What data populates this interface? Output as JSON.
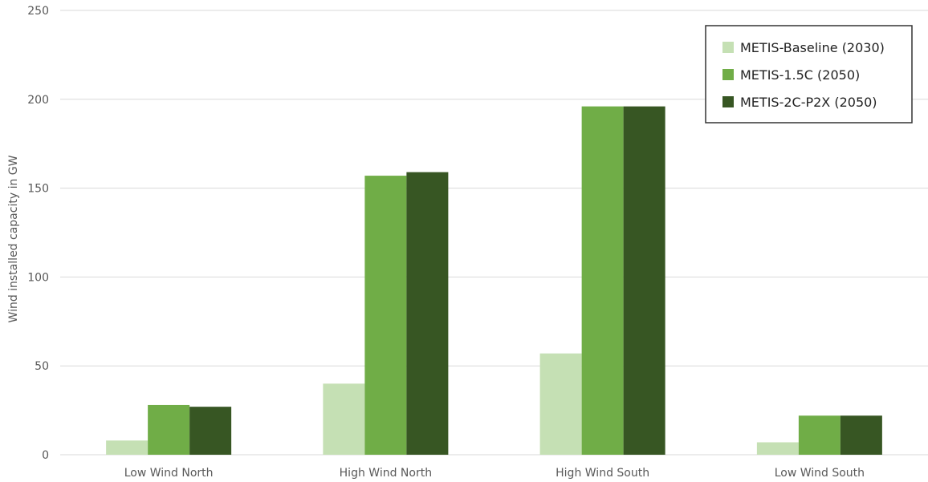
{
  "chart_data": {
    "type": "bar",
    "title": "",
    "xlabel": "",
    "ylabel": "Wind installed capacity in GW",
    "ylim": [
      0,
      250
    ],
    "yticks": [
      0,
      50,
      100,
      150,
      200,
      250
    ],
    "grid": true,
    "legend_position": "top-right",
    "categories": [
      "Low Wind North",
      "High Wind North",
      "High Wind South",
      "Low Wind South"
    ],
    "series": [
      {
        "name": "METIS-Baseline (2030)",
        "color": "#c5e0b4",
        "values": [
          8,
          40,
          57,
          7
        ]
      },
      {
        "name": "METIS-1.5C (2050)",
        "color": "#70ad47",
        "values": [
          28,
          157,
          196,
          22
        ]
      },
      {
        "name": "METIS-2C-P2X (2050)",
        "color": "#375623",
        "values": [
          27,
          159,
          196,
          22
        ]
      }
    ]
  }
}
